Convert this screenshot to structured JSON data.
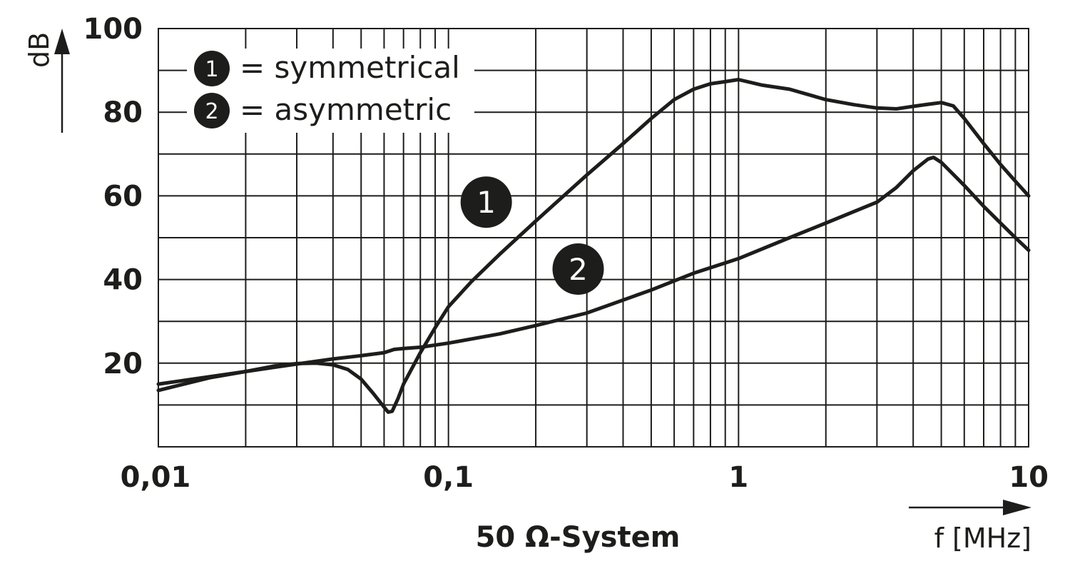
{
  "chart_data": {
    "type": "line",
    "x_scale": "log",
    "xlim": [
      0.01,
      10
    ],
    "ylim": [
      0,
      100
    ],
    "x_ticks": [
      {
        "value": 0.01,
        "label": "0,01"
      },
      {
        "value": 0.1,
        "label": "0,1"
      },
      {
        "value": 1,
        "label": "1"
      },
      {
        "value": 10,
        "label": "10"
      }
    ],
    "y_ticks": [
      {
        "value": 20,
        "label": "20"
      },
      {
        "value": 40,
        "label": "40"
      },
      {
        "value": 60,
        "label": "60"
      },
      {
        "value": 80,
        "label": "80"
      },
      {
        "value": 100,
        "label": "100"
      }
    ],
    "y_grid_step": 10,
    "grid": true,
    "ylabel": "dB",
    "xlabel": "f [MHz]",
    "caption": "50 Ω-System",
    "legend": {
      "placement": "top-left",
      "entries": [
        {
          "marker": "1",
          "text": "= symmetrical"
        },
        {
          "marker": "2",
          "text": "= asymmetric"
        }
      ]
    },
    "series": [
      {
        "marker": "1",
        "label_at": {
          "x": 0.135,
          "y": 58.5
        },
        "points": [
          [
            0.01,
            13.5
          ],
          [
            0.015,
            16.5
          ],
          [
            0.02,
            18
          ],
          [
            0.025,
            19.3
          ],
          [
            0.03,
            19.9
          ],
          [
            0.035,
            20.0
          ],
          [
            0.04,
            19.6
          ],
          [
            0.045,
            18.5
          ],
          [
            0.05,
            16.2
          ],
          [
            0.055,
            12.8
          ],
          [
            0.06,
            9.5
          ],
          [
            0.062,
            8.3
          ],
          [
            0.064,
            8.5
          ],
          [
            0.067,
            11.5
          ],
          [
            0.07,
            15
          ],
          [
            0.08,
            22.5
          ],
          [
            0.09,
            28.5
          ],
          [
            0.1,
            33.5
          ],
          [
            0.12,
            39.5
          ],
          [
            0.15,
            46
          ],
          [
            0.2,
            54
          ],
          [
            0.3,
            65
          ],
          [
            0.4,
            72.5
          ],
          [
            0.5,
            78.5
          ],
          [
            0.6,
            83
          ],
          [
            0.7,
            85.5
          ],
          [
            0.8,
            86.8
          ],
          [
            0.9,
            87.3
          ],
          [
            1.0,
            87.8
          ],
          [
            1.2,
            86.5
          ],
          [
            1.5,
            85.5
          ],
          [
            2.0,
            83
          ],
          [
            2.5,
            81.8
          ],
          [
            3.0,
            81
          ],
          [
            3.5,
            80.8
          ],
          [
            4.0,
            81.4
          ],
          [
            4.5,
            81.9
          ],
          [
            5.0,
            82.3
          ],
          [
            5.5,
            81.5
          ],
          [
            6.0,
            78.5
          ],
          [
            7.0,
            72.5
          ],
          [
            8.0,
            67.5
          ],
          [
            9.0,
            63.5
          ],
          [
            10.0,
            60
          ]
        ]
      },
      {
        "marker": "2",
        "label_at": {
          "x": 0.28,
          "y": 42.5
        },
        "points": [
          [
            0.01,
            15
          ],
          [
            0.02,
            18
          ],
          [
            0.03,
            19.8
          ],
          [
            0.04,
            21
          ],
          [
            0.05,
            21.8
          ],
          [
            0.06,
            22.5
          ],
          [
            0.065,
            23.3
          ],
          [
            0.07,
            23.5
          ],
          [
            0.08,
            23.8
          ],
          [
            0.1,
            24.8
          ],
          [
            0.15,
            27
          ],
          [
            0.2,
            29
          ],
          [
            0.3,
            32
          ],
          [
            0.5,
            37.5
          ],
          [
            0.7,
            41.5
          ],
          [
            1.0,
            45
          ],
          [
            1.5,
            50
          ],
          [
            2.0,
            53.5
          ],
          [
            3.0,
            58.5
          ],
          [
            3.5,
            62
          ],
          [
            4.0,
            66
          ],
          [
            4.5,
            68.8
          ],
          [
            4.7,
            69.2
          ],
          [
            5.0,
            68
          ],
          [
            6.0,
            62.5
          ],
          [
            7.0,
            57.5
          ],
          [
            8.0,
            53.5
          ],
          [
            9.0,
            50
          ],
          [
            10.0,
            47
          ]
        ]
      }
    ]
  }
}
